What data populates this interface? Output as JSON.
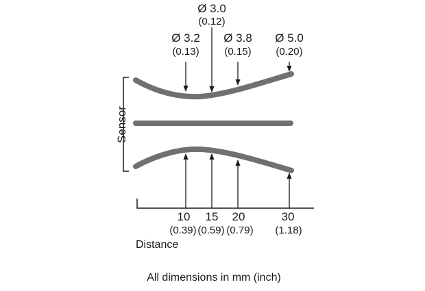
{
  "diagram": {
    "colors": {
      "beam": "#707070",
      "line": "#1a1a1a",
      "text": "#1a1a1a"
    },
    "sensor_label": "Sensor",
    "axis_label": "Distance",
    "footer": "All dimensions in mm (inch)",
    "diameters": [
      {
        "main": "Ø 3.2",
        "sub": "(0.13)"
      },
      {
        "main": "Ø 3.0",
        "sub": "(0.12)"
      },
      {
        "main": "Ø 3.8",
        "sub": "(0.15)"
      },
      {
        "main": "Ø 5.0",
        "sub": "(0.20)"
      }
    ],
    "distances": [
      {
        "main": "10",
        "sub": "(0.39)"
      },
      {
        "main": "15",
        "sub": "(0.59)"
      },
      {
        "main": "20",
        "sub": "(0.79)"
      },
      {
        "main": "30",
        "sub": "(1.18)"
      }
    ]
  }
}
